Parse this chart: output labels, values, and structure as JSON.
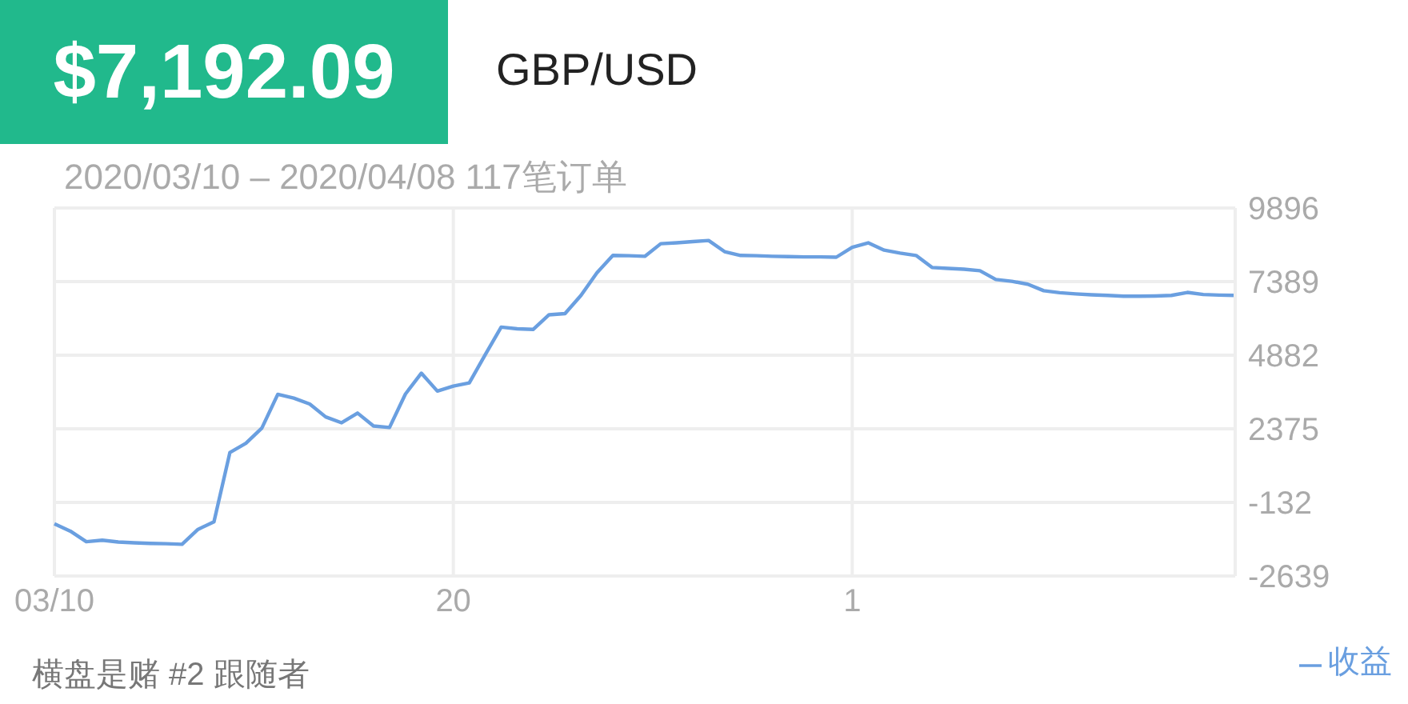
{
  "chart_data": {
    "type": "line",
    "title": "$7,192.09",
    "subtitle": "GBP/USD",
    "annotations": [
      "2020/03/10 – 2020/04/08 117笔订单",
      "横盘是赌 #2 跟随者"
    ],
    "categories": [
      "03/10",
      null,
      null,
      null,
      null,
      null,
      null,
      null,
      null,
      null,
      null,
      null,
      null,
      null,
      null,
      null,
      null,
      null,
      null,
      null,
      null,
      null,
      null,
      null,
      null,
      "20",
      null,
      null,
      null,
      null,
      null,
      null,
      null,
      null,
      null,
      null,
      null,
      null,
      null,
      null,
      null,
      null,
      null,
      null,
      null,
      null,
      null,
      null,
      null,
      null,
      "1",
      null,
      null,
      null,
      null,
      null,
      null,
      null,
      null,
      null,
      null,
      null,
      null,
      null,
      null,
      null,
      null,
      null,
      null,
      null,
      null,
      null,
      null,
      null,
      null
    ],
    "series": [
      {
        "name": "收益",
        "color": "#6a9fe0",
        "values": [
          -860,
          -1110,
          -1470,
          -1420,
          -1480,
          -1510,
          -1530,
          -1540,
          -1560,
          -1050,
          -790,
          1570,
          1880,
          2400,
          3550,
          3420,
          3220,
          2780,
          2580,
          2910,
          2470,
          2420,
          3560,
          4270,
          3660,
          3830,
          3940,
          4900,
          5840,
          5780,
          5760,
          6260,
          6300,
          6920,
          7690,
          8280,
          8270,
          8250,
          8680,
          8710,
          8750,
          8790,
          8410,
          8280,
          8270,
          8250,
          8240,
          8230,
          8230,
          8220,
          8560,
          8710,
          8460,
          8360,
          8280,
          7870,
          7840,
          7810,
          7760,
          7460,
          7400,
          7300,
          7080,
          7010,
          6970,
          6940,
          6920,
          6890,
          6890,
          6900,
          6920,
          7020,
          6950,
          6930,
          6920
        ]
      }
    ],
    "ylim": [
      -2639,
      9896
    ],
    "yticks": [
      -2639,
      -132,
      2375,
      4882,
      7389,
      9896
    ],
    "grid": true,
    "legend": "bottom right",
    "marker": "none",
    "line_style": "solid"
  }
}
